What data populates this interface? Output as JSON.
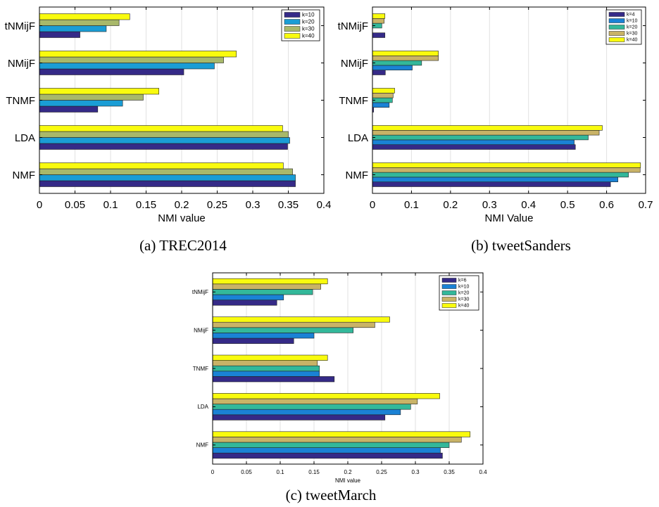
{
  "colors": {
    "k_first": "#352a87",
    "k10": "#1a82d5",
    "k20": "#33b89a",
    "k30": "#c9b367",
    "k30_trec": "#a8b86a",
    "k40": "#f9fb0e",
    "k20_trec": "#1a9dd5"
  },
  "chart_data": [
    {
      "type": "bar",
      "orientation": "horizontal",
      "caption": "(a) TREC2014",
      "xlabel": "NMI value",
      "ylabel": "",
      "xlim": [
        0,
        0.4
      ],
      "xticks": [
        "0",
        "0.05",
        "0.1",
        "0.15",
        "0.2",
        "0.25",
        "0.3",
        "0.35",
        "0.4"
      ],
      "grid": true,
      "legend": "top-right",
      "categories": [
        "NMF",
        "LDA",
        "TNMF",
        "NMijF",
        "tNMijF"
      ],
      "series": [
        {
          "name": "k=10",
          "color": "#352a87",
          "values": [
            0.36,
            0.349,
            0.082,
            0.203,
            0.057
          ]
        },
        {
          "name": "k=20",
          "color": "#1a9dd5",
          "values": [
            0.36,
            0.352,
            0.117,
            0.246,
            0.094
          ]
        },
        {
          "name": "k=30",
          "color": "#a8b86a",
          "values": [
            0.356,
            0.35,
            0.146,
            0.259,
            0.112
          ]
        },
        {
          "name": "k=40",
          "color": "#f9fb0e",
          "values": [
            0.343,
            0.342,
            0.168,
            0.277,
            0.127
          ]
        }
      ]
    },
    {
      "type": "bar",
      "orientation": "horizontal",
      "caption": "(b) tweetSanders",
      "xlabel": "NMI Value",
      "ylabel": "",
      "xlim": [
        0,
        0.7
      ],
      "xticks": [
        "0",
        "0.1",
        "0.2",
        "0.3",
        "0.4",
        "0.5",
        "0.6",
        "0.7"
      ],
      "grid": true,
      "legend": "top-right",
      "categories": [
        "NMF",
        "LDA",
        "TNMF",
        "NMijF",
        "tNMijF"
      ],
      "series": [
        {
          "name": "k=4",
          "color": "#352a87",
          "values": [
            0.61,
            0.52,
            0.003,
            0.033,
            0.032
          ]
        },
        {
          "name": "k=10",
          "color": "#1a82d5",
          "values": [
            0.629,
            0.517,
            0.043,
            0.102,
            0.0
          ]
        },
        {
          "name": "k=20",
          "color": "#33b89a",
          "values": [
            0.656,
            0.553,
            0.051,
            0.126,
            0.024
          ]
        },
        {
          "name": "k=30",
          "color": "#c9b367",
          "values": [
            0.686,
            0.581,
            0.053,
            0.169,
            0.03
          ]
        },
        {
          "name": "k=40",
          "color": "#f9fb0e",
          "values": [
            0.687,
            0.589,
            0.057,
            0.169,
            0.032
          ]
        }
      ]
    },
    {
      "type": "bar",
      "orientation": "horizontal",
      "caption": "(c) tweetMarch",
      "xlabel": "NMI value",
      "ylabel": "",
      "xlim": [
        0,
        0.4
      ],
      "xticks": [
        "0",
        "0.05",
        "0.1",
        "0.15",
        "0.2",
        "0.25",
        "0.3",
        "0.35",
        "0.4"
      ],
      "grid": true,
      "legend": "top-right",
      "categories": [
        "NMF",
        "LDA",
        "TNMF",
        "NMijF",
        "tNMijF"
      ],
      "series": [
        {
          "name": "k=6",
          "color": "#352a87",
          "values": [
            0.34,
            0.255,
            0.18,
            0.12,
            0.095
          ]
        },
        {
          "name": "k=10",
          "color": "#1a82d5",
          "values": [
            0.337,
            0.278,
            0.158,
            0.15,
            0.105
          ]
        },
        {
          "name": "k=20",
          "color": "#33b89a",
          "values": [
            0.35,
            0.293,
            0.158,
            0.208,
            0.148
          ]
        },
        {
          "name": "k=30",
          "color": "#c9b367",
          "values": [
            0.368,
            0.303,
            0.155,
            0.24,
            0.16
          ]
        },
        {
          "name": "k=40",
          "color": "#f9fb0e",
          "values": [
            0.381,
            0.336,
            0.17,
            0.262,
            0.17
          ]
        }
      ]
    }
  ]
}
